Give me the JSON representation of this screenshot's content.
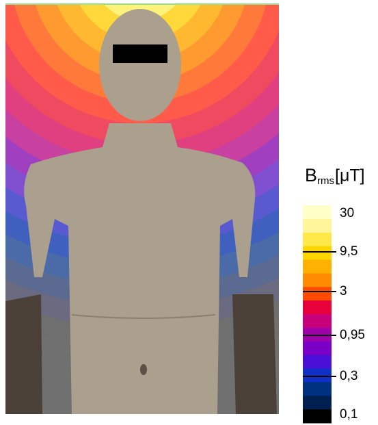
{
  "colorbar": {
    "title": {
      "symbol": "B",
      "subscript": "rms",
      "unit": "[μT]"
    },
    "ticks": [
      "30",
      "9,5",
      "3",
      "0,95",
      "0,3",
      "0,1"
    ]
  }
}
